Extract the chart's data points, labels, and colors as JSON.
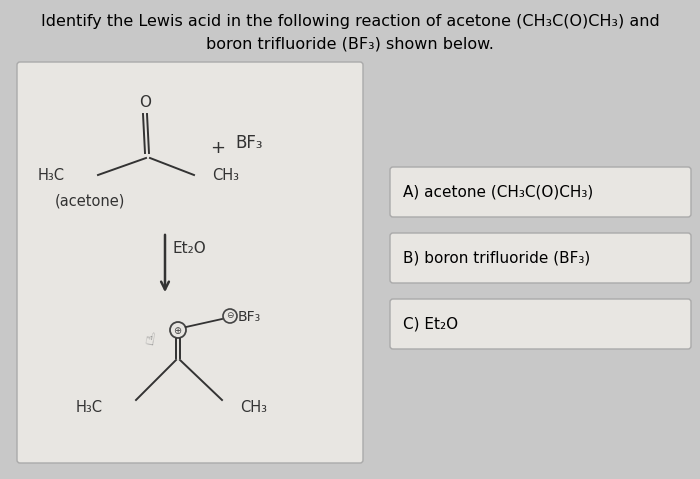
{
  "background_color": "#c8c8c8",
  "title_line1": "Identify the Lewis acid in the following reaction of acetone (CH₃C(O)CH₃) and",
  "title_line2": "boron trifluoride (BF₃) shown below.",
  "title_fontsize": 11.5,
  "left_box_facecolor": "#e8e6e2",
  "left_box_edgecolor": "#aaaaaa",
  "answer_A": "A) acetone (CH₃C(O)CH₃)",
  "answer_B": "B) boron trifluoride (BF₃)",
  "answer_C": "C) Et₂O",
  "answer_fontsize": 11,
  "struct_color": "#333333",
  "product_color": "#333333",
  "bf3_color": "#555555",
  "arrow_color": "#333333"
}
